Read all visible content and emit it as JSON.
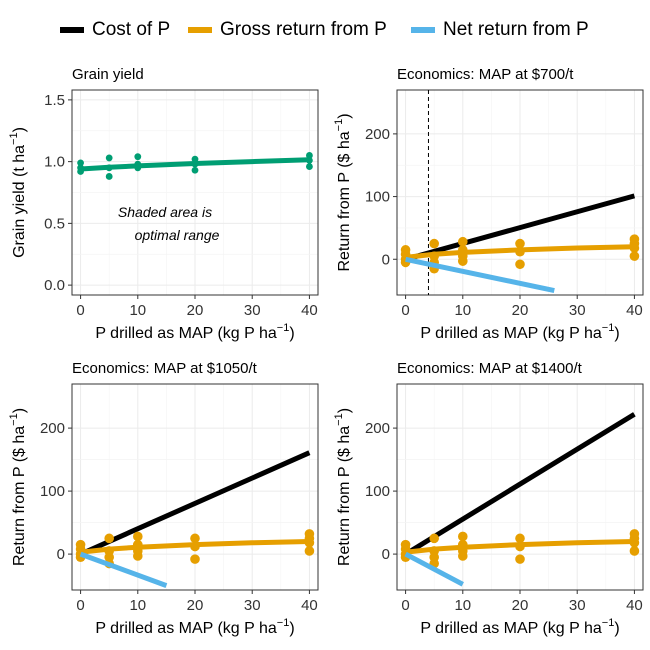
{
  "legend": {
    "items": [
      {
        "label": "Cost of P",
        "color": "#000000"
      },
      {
        "label": "Gross return from P",
        "color": "#E69F00"
      },
      {
        "label": "Net return from P",
        "color": "#56B4E9"
      }
    ]
  },
  "annotation": {
    "line1": "Shaded area is",
    "line2": "optimal range"
  },
  "chart_data": [
    {
      "type": "scatter",
      "title": "Grain yield",
      "xlabel": "P drilled as MAP (kg P ha",
      "xlabel_sup": "−1",
      "xlabel_end": ")",
      "ylabel": "Grain yield (t ha",
      "ylabel_sup": "−1",
      "ylabel_end": ")",
      "xlim": [
        -1.5,
        41.5
      ],
      "ylim": [
        -0.08,
        1.58
      ],
      "xticks": [
        0,
        10,
        20,
        30,
        40
      ],
      "yticks": [
        0.0,
        0.5,
        1.0,
        1.5
      ],
      "ytick_labels": [
        "0.0",
        "0.5",
        "1.0",
        "1.5"
      ],
      "grid": true,
      "series": [
        {
          "color": "#009E73",
          "points": [
            [
              0,
              0.92
            ],
            [
              0,
              0.95
            ],
            [
              0,
              0.99
            ],
            [
              5,
              0.88
            ],
            [
              5,
              0.95
            ],
            [
              5,
              1.03
            ],
            [
              10,
              0.95
            ],
            [
              10,
              0.98
            ],
            [
              10,
              1.04
            ],
            [
              20,
              0.93
            ],
            [
              20,
              0.98
            ],
            [
              20,
              1.02
            ],
            [
              40,
              0.96
            ],
            [
              40,
              1.01
            ],
            [
              40,
              1.05
            ]
          ],
          "curve": [
            [
              0,
              0.94
            ],
            [
              5,
              0.955
            ],
            [
              10,
              0.965
            ],
            [
              20,
              0.985
            ],
            [
              30,
              1.0
            ],
            [
              40,
              1.015
            ]
          ]
        }
      ]
    },
    {
      "type": "line",
      "title": "Economics: MAP at $700/t",
      "xlabel": "P drilled as MAP (kg P ha",
      "xlabel_sup": "−1",
      "xlabel_end": ")",
      "ylabel": "Return from P ($ ha",
      "ylabel_sup": "−1",
      "ylabel_end": ")",
      "xlim": [
        -1.5,
        41.5
      ],
      "ylim": [
        -57,
        270
      ],
      "xticks": [
        0,
        10,
        20,
        30,
        40
      ],
      "yticks": [
        0,
        100,
        200
      ],
      "ytick_labels": [
        "0",
        "100",
        "200"
      ],
      "grid": true,
      "vline": 4,
      "series": [
        {
          "name": "Cost of P",
          "color": "#000000",
          "line": [
            [
              0,
              0
            ],
            [
              40,
              101
            ]
          ]
        },
        {
          "name": "Gross return from P",
          "color": "#E69F00",
          "points": [
            [
              0,
              -5
            ],
            [
              0,
              0
            ],
            [
              0,
              8
            ],
            [
              0,
              15
            ],
            [
              5,
              -15
            ],
            [
              5,
              -5
            ],
            [
              5,
              5
            ],
            [
              5,
              25
            ],
            [
              10,
              -3
            ],
            [
              10,
              5
            ],
            [
              10,
              15
            ],
            [
              10,
              28
            ],
            [
              20,
              -8
            ],
            [
              20,
              12
            ],
            [
              20,
              25
            ],
            [
              40,
              5
            ],
            [
              40,
              18
            ],
            [
              40,
              25
            ],
            [
              40,
              32
            ]
          ],
          "line": [
            [
              0,
              3
            ],
            [
              5,
              8
            ],
            [
              10,
              11
            ],
            [
              20,
              15
            ],
            [
              30,
              18
            ],
            [
              40,
              20
            ]
          ]
        },
        {
          "name": "Net return from P",
          "color": "#56B4E9",
          "line": [
            [
              0,
              0
            ],
            [
              26,
              -50
            ]
          ]
        }
      ]
    },
    {
      "type": "line",
      "title": "Economics: MAP at $1050/t",
      "xlabel": "P drilled as MAP (kg P ha",
      "xlabel_sup": "−1",
      "xlabel_end": ")",
      "ylabel": "Return from P ($ ha",
      "ylabel_sup": "−1",
      "ylabel_end": ")",
      "xlim": [
        -1.5,
        41.5
      ],
      "ylim": [
        -57,
        270
      ],
      "xticks": [
        0,
        10,
        20,
        30,
        40
      ],
      "yticks": [
        0,
        100,
        200
      ],
      "ytick_labels": [
        "0",
        "100",
        "200"
      ],
      "grid": true,
      "series": [
        {
          "name": "Cost of P",
          "color": "#000000",
          "line": [
            [
              0,
              0
            ],
            [
              40,
              161
            ]
          ]
        },
        {
          "name": "Gross return from P",
          "color": "#E69F00",
          "points": [
            [
              0,
              -5
            ],
            [
              0,
              0
            ],
            [
              0,
              8
            ],
            [
              0,
              15
            ],
            [
              5,
              -15
            ],
            [
              5,
              -5
            ],
            [
              5,
              5
            ],
            [
              5,
              25
            ],
            [
              10,
              -3
            ],
            [
              10,
              5
            ],
            [
              10,
              15
            ],
            [
              10,
              28
            ],
            [
              20,
              -8
            ],
            [
              20,
              12
            ],
            [
              20,
              25
            ],
            [
              40,
              5
            ],
            [
              40,
              18
            ],
            [
              40,
              25
            ],
            [
              40,
              32
            ]
          ],
          "line": [
            [
              0,
              3
            ],
            [
              5,
              8
            ],
            [
              10,
              11
            ],
            [
              20,
              15
            ],
            [
              30,
              18
            ],
            [
              40,
              20
            ]
          ]
        },
        {
          "name": "Net return from P",
          "color": "#56B4E9",
          "line": [
            [
              0,
              0
            ],
            [
              15,
              -50
            ]
          ]
        }
      ]
    },
    {
      "type": "line",
      "title": "Economics: MAP at $1400/t",
      "xlabel": "P drilled as MAP (kg P ha",
      "xlabel_sup": "−1",
      "xlabel_end": ")",
      "ylabel": "Return from P ($ ha",
      "ylabel_sup": "−1",
      "ylabel_end": ")",
      "xlim": [
        -1.5,
        41.5
      ],
      "ylim": [
        -57,
        270
      ],
      "xticks": [
        0,
        10,
        20,
        30,
        40
      ],
      "yticks": [
        0,
        100,
        200
      ],
      "ytick_labels": [
        "0",
        "100",
        "200"
      ],
      "grid": true,
      "series": [
        {
          "name": "Cost of P",
          "color": "#000000",
          "line": [
            [
              0,
              0
            ],
            [
              40,
              222
            ]
          ]
        },
        {
          "name": "Gross return from P",
          "color": "#E69F00",
          "points": [
            [
              0,
              -5
            ],
            [
              0,
              0
            ],
            [
              0,
              8
            ],
            [
              0,
              15
            ],
            [
              5,
              -15
            ],
            [
              5,
              -5
            ],
            [
              5,
              5
            ],
            [
              5,
              25
            ],
            [
              10,
              -3
            ],
            [
              10,
              5
            ],
            [
              10,
              15
            ],
            [
              10,
              28
            ],
            [
              20,
              -8
            ],
            [
              20,
              12
            ],
            [
              20,
              25
            ],
            [
              40,
              5
            ],
            [
              40,
              18
            ],
            [
              40,
              25
            ],
            [
              40,
              32
            ]
          ],
          "line": [
            [
              0,
              3
            ],
            [
              5,
              8
            ],
            [
              10,
              11
            ],
            [
              20,
              15
            ],
            [
              30,
              18
            ],
            [
              40,
              20
            ]
          ]
        },
        {
          "name": "Net return from P",
          "color": "#56B4E9",
          "line": [
            [
              0,
              0
            ],
            [
              10,
              -48
            ]
          ]
        }
      ]
    }
  ]
}
